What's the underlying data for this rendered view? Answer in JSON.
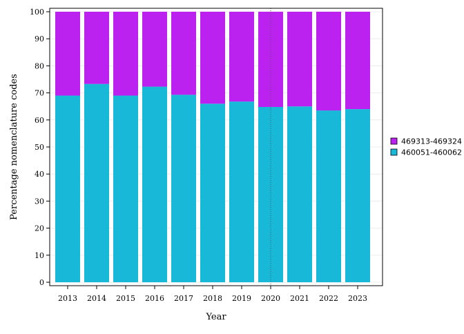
{
  "chart_data": {
    "type": "bar",
    "stacked": true,
    "categories": [
      "2013",
      "2014",
      "2015",
      "2016",
      "2017",
      "2018",
      "2019",
      "2020",
      "2021",
      "2022",
      "2023"
    ],
    "series": [
      {
        "name": "460051-460062",
        "color": "#17b8d8",
        "values": [
          69,
          73.3,
          69,
          72.3,
          69.3,
          66,
          66.8,
          64.8,
          65,
          63.5,
          64
        ]
      },
      {
        "name": "469313-469324",
        "color": "#bb22f0",
        "values": [
          31,
          26.7,
          31,
          27.7,
          30.7,
          34,
          33.2,
          35.2,
          35,
          36.5,
          36
        ]
      }
    ],
    "xlabel": "Year",
    "ylabel": "Percentage nomenclature codes",
    "ylim": [
      0,
      100
    ],
    "yticks": [
      0,
      10,
      20,
      30,
      40,
      50,
      60,
      70,
      80,
      90,
      100
    ],
    "grid": true,
    "reference_line": {
      "x": "2020",
      "style": "dotted"
    },
    "legend_position": "right"
  }
}
